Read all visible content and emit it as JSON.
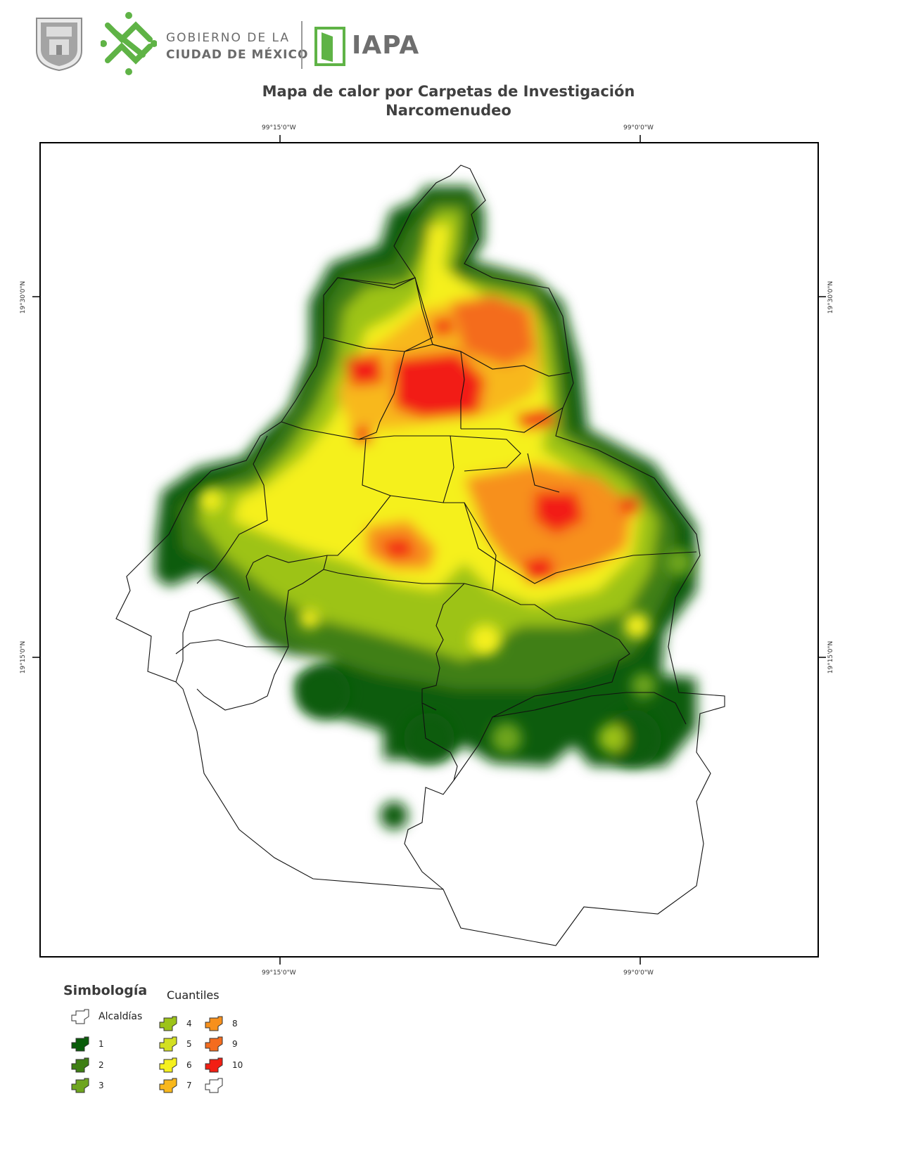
{
  "header": {
    "gov_line1": "GOBIERNO DE LA",
    "gov_line2": "CIUDAD DE MÉXICO",
    "iapa": "IAPA",
    "brand_green": "#5fb346",
    "gray": "#6e6e6e"
  },
  "title": {
    "line1": "Mapa de calor por Carpetas de Investigación",
    "line2": "Narcomenudeo"
  },
  "coords": {
    "top_left": "99°15'0\"W",
    "top_right": "99°0'0\"W",
    "bottom_left": "99°15'0\"W",
    "bottom_right": "99°0'0\"W",
    "left_upper": "19°30'0\"N",
    "left_lower": "19°15'0\"N",
    "right_upper": "19°30'0\"N",
    "right_lower": "19°15'0\"N"
  },
  "legend": {
    "title": "Simbología",
    "subtitle": "Cuantiles",
    "alcaldias_label": "Alcaldías",
    "items": [
      {
        "label": "1",
        "color": "#0a5c0a"
      },
      {
        "label": "2",
        "color": "#3f7f14"
      },
      {
        "label": "3",
        "color": "#6ea51e"
      },
      {
        "label": "4",
        "color": "#9dc319"
      },
      {
        "label": "5",
        "color": "#d3e023"
      },
      {
        "label": "6",
        "color": "#f5f01e"
      },
      {
        "label": "7",
        "color": "#f8b81c"
      },
      {
        "label": "8",
        "color": "#f7901c"
      },
      {
        "label": "9",
        "color": "#f46c1e"
      },
      {
        "label": "10",
        "color": "#f21e13"
      },
      {
        "label": "",
        "color": "#ffffff"
      }
    ]
  }
}
